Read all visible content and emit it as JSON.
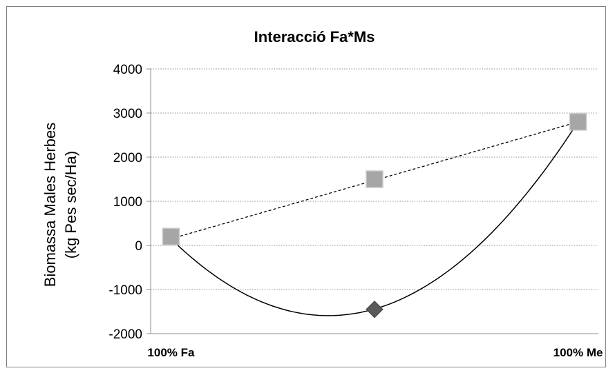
{
  "chart_data": {
    "type": "scatter",
    "title": "Interacció Fa*Ms",
    "ylabel_lines": [
      "Biomassa Males Herbes",
      "(kg Pes sec/Ha)"
    ],
    "xlabel": "",
    "ylim": [
      -2000,
      4000
    ],
    "yticks": [
      4000,
      3000,
      2000,
      1000,
      0,
      -1000,
      -2000
    ],
    "ytick_labels": [
      "4000",
      "3000",
      "2000",
      "1000",
      "0",
      "-1000",
      "-2000"
    ],
    "xlim": [
      -0.05,
      1.05
    ],
    "xticks": [
      0,
      1
    ],
    "xtick_labels": [
      "100% Fa",
      "100% Me"
    ],
    "grid": "horizontal-dotted",
    "legend": "none",
    "series": [
      {
        "marker": "square",
        "color": "#a6a6a6",
        "x": [
          0,
          0.5,
          1
        ],
        "y": [
          200,
          1500,
          2800
        ]
      },
      {
        "marker": "diamond",
        "color": "#595959",
        "x": [
          0.5
        ],
        "y": [
          -1450
        ]
      }
    ],
    "lines": [
      {
        "style": "dashed",
        "color": "#000000",
        "x": [
          0,
          1
        ],
        "y": [
          150,
          2800
        ]
      },
      {
        "style": "solid-curve",
        "color": "#000000",
        "x": [
          0,
          0.4,
          1
        ],
        "y": [
          150,
          -1590,
          2800
        ]
      }
    ]
  }
}
